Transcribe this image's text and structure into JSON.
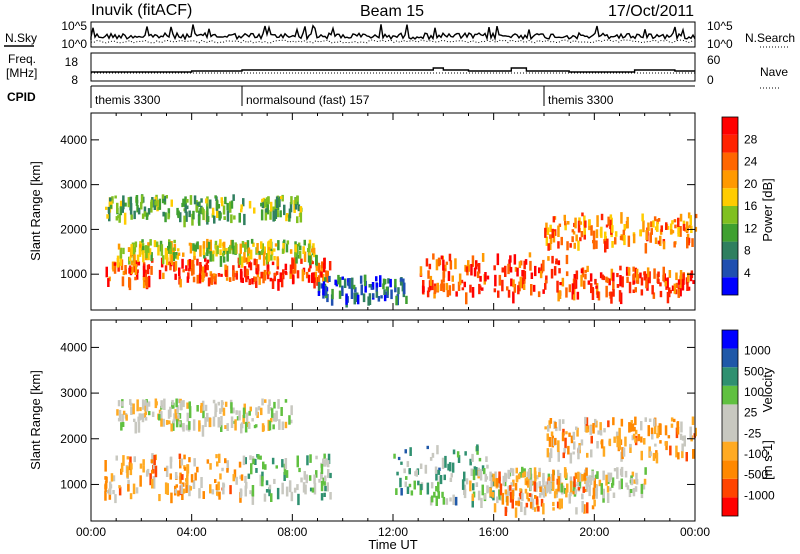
{
  "header": {
    "station": "Inuvik (fitACF)",
    "beam": "Beam 15",
    "date": "17/Oct/2011"
  },
  "strip_labels": {
    "nsky": "N.Sky",
    "nsearch": "N.Search",
    "freq": "Freq.",
    "freq_unit": "[MHz]",
    "nave": "Nave",
    "cpid": "CPID",
    "nsky_ticks": [
      "10^5",
      "10^0"
    ],
    "nsearch_ticks": [
      "10^5",
      "10^0"
    ],
    "freq_ticks": [
      "18",
      "8"
    ],
    "nave_ticks": [
      "60",
      "0"
    ]
  },
  "cpid_segments": [
    {
      "label": "themis 3300",
      "start_h": 0,
      "end_h": 6
    },
    {
      "label": "normalsound (fast) 157",
      "start_h": 6,
      "end_h": 18
    },
    {
      "label": "themis 3300",
      "start_h": 18,
      "end_h": 24
    }
  ],
  "colors": {
    "power_scale": [
      "#0000ff",
      "#1f4fb0",
      "#2f7f5f",
      "#3fa030",
      "#80c020",
      "#ffcc00",
      "#ff9900",
      "#ff6600",
      "#ff2200",
      "#ff0000"
    ],
    "velocity_scale": [
      "#ff0000",
      "#ff4400",
      "#ff8800",
      "#ffaa22",
      "#c8c8c0",
      "#c8c8c0",
      "#60c040",
      "#2f9070",
      "#1f58a8",
      "#0000ff"
    ]
  },
  "chart_data": [
    {
      "type": "heatmap",
      "name": "power",
      "ylabel": "Slant Range [km]",
      "y_ticks": [
        1000,
        2000,
        3000,
        4000
      ],
      "ylim": [
        200,
        4600
      ],
      "x_ticks": [
        "00:00",
        "04:00",
        "08:00",
        "12:00",
        "16:00",
        "20:00",
        "00:00"
      ],
      "xlim_hours": [
        0,
        24
      ],
      "colorbar_label": "Power [dB]",
      "colorbar_ticks": [
        "4",
        "8",
        "12",
        "16",
        "20",
        "24",
        "28"
      ],
      "bands": [
        {
          "range_km": [
            800,
            1300
          ],
          "hours": [
            0.5,
            9.5
          ],
          "value_db": 26
        },
        {
          "range_km": [
            1300,
            1700
          ],
          "hours": [
            1,
            9
          ],
          "value_db": 16
        },
        {
          "range_km": [
            2200,
            2700
          ],
          "hours": [
            0.5,
            8.5
          ],
          "value_db": 12
        },
        {
          "range_km": [
            400,
            900
          ],
          "hours": [
            9,
            12.5
          ],
          "value_db": 6
        },
        {
          "range_km": [
            500,
            1400
          ],
          "hours": [
            13,
            19
          ],
          "value_db": 26
        },
        {
          "range_km": [
            1600,
            2300
          ],
          "hours": [
            18,
            24
          ],
          "value_db": 22
        },
        {
          "range_km": [
            500,
            1100
          ],
          "hours": [
            19,
            24
          ],
          "value_db": 27
        }
      ]
    },
    {
      "type": "heatmap",
      "name": "velocity",
      "ylabel": "Slant Range [km]",
      "y_ticks": [
        1000,
        2000,
        3000,
        4000
      ],
      "ylim": [
        200,
        4600
      ],
      "x_ticks": [
        "00:00",
        "04:00",
        "08:00",
        "12:00",
        "16:00",
        "20:00",
        "00:00"
      ],
      "xlim_hours": [
        0,
        24
      ],
      "xlabel": "Time UT",
      "colorbar_label": "Velocity",
      "colorbar_unit": "[m s-1]",
      "colorbar_ticks": [
        "1000",
        "500",
        "100",
        "25",
        "-25",
        "-100",
        "-500",
        "-1000"
      ],
      "bands": [
        {
          "range_km": [
            700,
            1600
          ],
          "hours": [
            0.5,
            6
          ],
          "value_ms": -300
        },
        {
          "range_km": [
            700,
            1600
          ],
          "hours": [
            6,
            9.5
          ],
          "value_ms": 200
        },
        {
          "range_km": [
            2200,
            2800
          ],
          "hours": [
            1,
            8
          ],
          "value_ms": 0
        },
        {
          "range_km": [
            600,
            1800
          ],
          "hours": [
            12,
            16
          ],
          "value_ms": 300
        },
        {
          "range_km": [
            700,
            1300
          ],
          "hours": [
            15,
            22
          ],
          "value_ms": 0
        },
        {
          "range_km": [
            1600,
            2400
          ],
          "hours": [
            18,
            24
          ],
          "value_ms": -300
        },
        {
          "range_km": [
            400,
            1300
          ],
          "hours": [
            16,
            20
          ],
          "value_ms": -400
        }
      ]
    }
  ]
}
